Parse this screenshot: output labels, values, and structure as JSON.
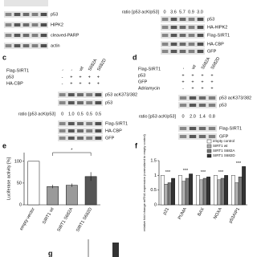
{
  "top_left": {
    "labels": [
      "p53",
      "HIPK2",
      "cleaved-PARP",
      "actin"
    ]
  },
  "top_right": {
    "ratio_label": "ratio [p53 acK/p53]",
    "ratios": [
      "0",
      "3.6",
      "5.7",
      "0.9",
      "3.0"
    ],
    "labels": [
      "p53",
      "HA-HIPK2",
      "Flag-SIRT1",
      "HA-CBP",
      "GFP"
    ]
  },
  "panel_c": {
    "letter": "c",
    "conditions": [
      {
        "name": "Flag-SIRT1",
        "values": [
          "-",
          "-",
          "wt",
          "S682A",
          "S682D"
        ]
      },
      {
        "name": "p53",
        "values": [
          "-",
          "+",
          "+",
          "+",
          "+"
        ]
      },
      {
        "name": "HA-CBP",
        "values": [
          "-",
          "+",
          "+",
          "+",
          "+"
        ]
      }
    ],
    "blots_upper": [
      "p53 acK373/382",
      "p53"
    ],
    "ratio_label": "ratio [p53 acK/p53]",
    "ratios": [
      "0",
      "1.0",
      "0.5",
      "0.5",
      "0.5"
    ],
    "blots_lower": [
      "Flag-SIRT1",
      "HA-CBP",
      "GFP"
    ]
  },
  "panel_d": {
    "letter": "d",
    "conditions": [
      {
        "name": "Flag-SIRT1",
        "values": [
          "-",
          "wt",
          "S682A",
          "S682D"
        ]
      },
      {
        "name": "p53",
        "values": [
          "+",
          "+",
          "+",
          "+"
        ]
      },
      {
        "name": "GFP",
        "values": [
          "+",
          "+",
          "+",
          "+"
        ]
      },
      {
        "name": "Adriamycin",
        "values": [
          "-",
          "+",
          "+",
          "+"
        ]
      }
    ],
    "blots_upper": [
      "p53 acK373/382",
      "p53"
    ],
    "ratio_label": "ratio [p53 acK/p53]",
    "ratios": [
      "0",
      "2.0",
      "1.4",
      "0.8"
    ],
    "blots_lower": [
      "Flag-SIRT1",
      "GFP"
    ]
  },
  "panel_e": {
    "letter": "e",
    "type": "bar",
    "ylabel": "Luciferase activity [%]",
    "categories": [
      "empty vector",
      "SIRT1 wt",
      "SIRT1 S682A",
      "SIRT1 S682D"
    ],
    "values": [
      100,
      42,
      45,
      65
    ],
    "errors": [
      0,
      4,
      4,
      10
    ],
    "colors": [
      "#ffffff",
      "#9a9a9a",
      "#9a9a9a",
      "#555555"
    ],
    "ylim": [
      0,
      120
    ],
    "yticks": [
      0,
      50,
      100
    ],
    "annotation": "*"
  },
  "panel_f": {
    "letter": "f",
    "type": "bar",
    "ylabel": "relative fold change mRNA expression (normalized to empty control)",
    "categories": [
      "p21",
      "PUMA",
      "BAX",
      "NOXA",
      "p53AIP1"
    ],
    "series": [
      {
        "name": "empty control",
        "color": "#ffffff",
        "values": [
          1.0,
          1.0,
          1.0,
          1.0,
          1.0
        ]
      },
      {
        "name": "SIRT1 wt",
        "color": "#b0b0b0",
        "values": [
          0.7,
          0.8,
          0.85,
          0.85,
          0.75
        ]
      },
      {
        "name": "SIRT1 S682A",
        "color": "#7a7a7a",
        "values": [
          0.75,
          0.9,
          0.9,
          0.9,
          0.95
        ]
      },
      {
        "name": "SIRT1 S682D",
        "color": "#333333",
        "values": [
          0.9,
          1.05,
          0.95,
          1.0,
          1.3
        ]
      }
    ],
    "ylim": [
      0,
      1.5
    ],
    "yticks": [
      0,
      0.5,
      1,
      1.5
    ],
    "annotation": "***"
  },
  "panel_g": {
    "letter": "g"
  }
}
